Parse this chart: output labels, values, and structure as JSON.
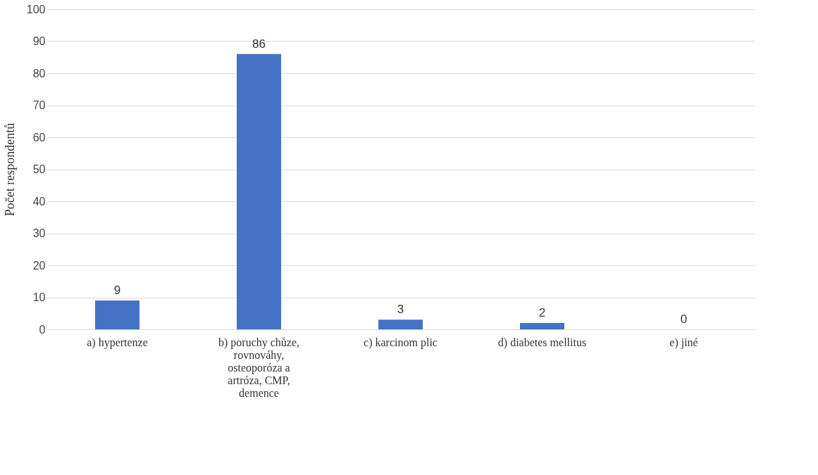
{
  "chart_data": {
    "type": "bar",
    "ylabel": "Počet respondentů",
    "categories": [
      "a) hypertenze",
      "b) poruchy chůze, rovnováhy, osteoporóza a artróza, CMP, demence",
      "c) karcinom plic",
      "d) diabetes mellitus",
      "e) jiné"
    ],
    "values": [
      9,
      86,
      3,
      2,
      0
    ],
    "color": "#4472c4",
    "ylim": [
      0,
      100
    ],
    "yticks": [
      0,
      10,
      20,
      30,
      40,
      50,
      60,
      70,
      80,
      90,
      100
    ],
    "grid": "y",
    "data_labels": true
  }
}
